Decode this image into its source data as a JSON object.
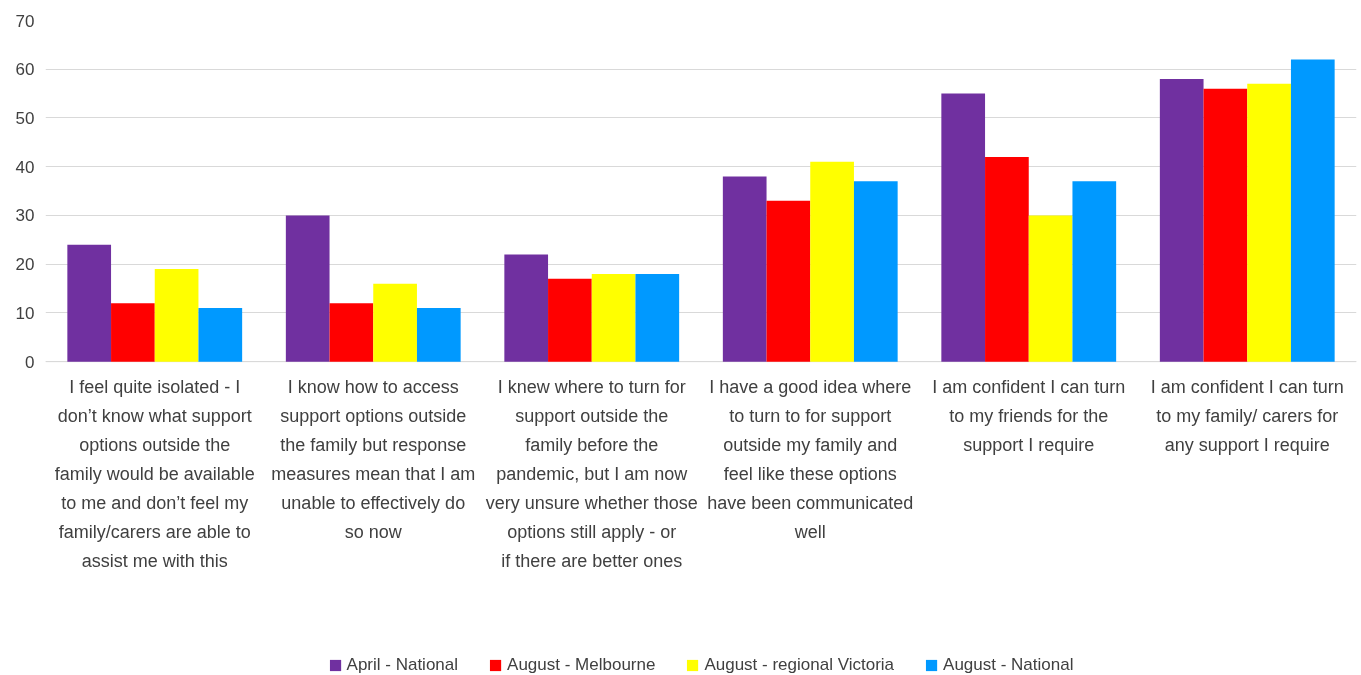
{
  "chart_data": {
    "type": "bar",
    "categories": [
      "I feel quite isolated - I don’t know what support options outside the family would be available to me and don’t feel my family/carers are able to assist me with this",
      "I know how to access support options outside the family but response measures mean that I am unable to effectively do so now",
      "I knew where to turn for support outside the family before the pandemic, but I am now very unsure whether those options still apply - or if there are better ones",
      "I have a good idea where to turn to for support outside my family and feel like these options have been communicated well",
      "I am confident I can turn to my friends for the support I require",
      "I am confident I can turn to my family/ carers for any support I require"
    ],
    "series": [
      {
        "name": "April - National",
        "color": "#7030a0",
        "values": [
          24,
          30,
          22,
          38,
          55,
          58
        ]
      },
      {
        "name": "August - Melbourne",
        "color": "#ff0000",
        "values": [
          12,
          12,
          17,
          33,
          42,
          56
        ]
      },
      {
        "name": "August - regional Victoria",
        "color": "#ffff00",
        "values": [
          19,
          16,
          18,
          41,
          30,
          57
        ]
      },
      {
        "name": "August - National",
        "color": "#0099ff",
        "values": [
          11,
          11,
          18,
          37,
          37,
          62
        ]
      }
    ],
    "ylim": [
      0,
      70
    ],
    "yticks": [
      0,
      10,
      20,
      30,
      40,
      50,
      60,
      70
    ],
    "grid": "y",
    "legend": "bottom"
  }
}
